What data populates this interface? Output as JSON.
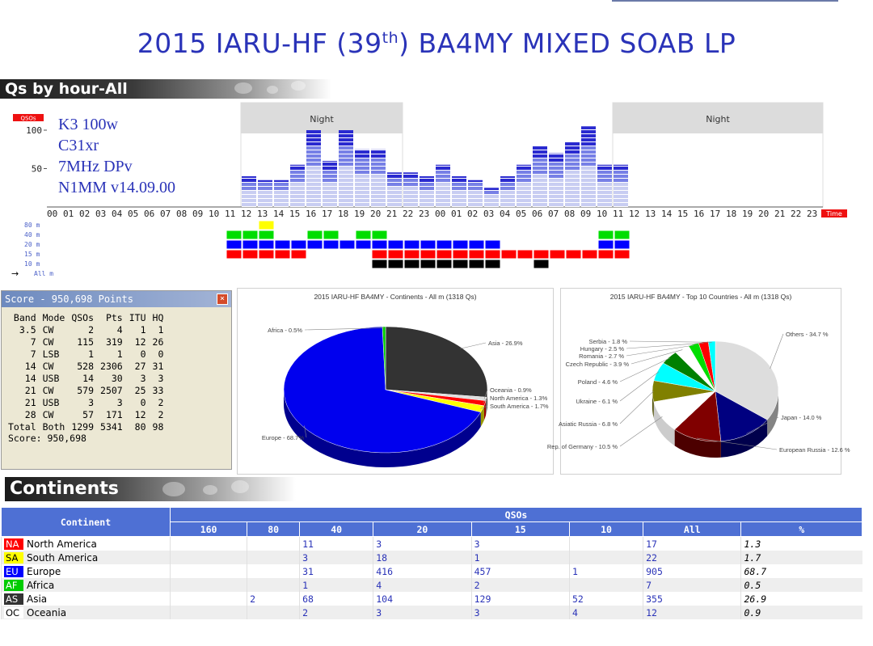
{
  "page": {
    "title_pre": "2015 IARU-HF (39",
    "title_sup": "th",
    "title_post": ") BA4MY MIXED SOAB LP"
  },
  "qs_by_hour": {
    "banner": "Qs by hour-All",
    "ylabel": "QSOs",
    "time_label": "Time",
    "night_label": "Night",
    "station_lines": [
      "K3  100w",
      "C31xr",
      "7MHz DPv",
      "N1MM v14.09.00"
    ],
    "band_rows": [
      "80 m",
      "40 m",
      "20 m",
      "15 m",
      "10 m",
      "All m"
    ],
    "band_arrow": "→"
  },
  "chart_data": [
    {
      "type": "bar",
      "title": "",
      "ylabel": "QSOs",
      "xlabel": "Time",
      "ylim": [
        0,
        120
      ],
      "yticks": [
        50,
        100
      ],
      "categories": [
        "00",
        "01",
        "02",
        "03",
        "04",
        "05",
        "06",
        "07",
        "08",
        "09",
        "10",
        "11",
        "12",
        "13",
        "14",
        "15",
        "16",
        "17",
        "18",
        "19",
        "20",
        "21",
        "22",
        "23",
        "00",
        "01",
        "02",
        "03",
        "04",
        "05",
        "06",
        "07",
        "08",
        "09",
        "10",
        "11",
        "12",
        "13",
        "14",
        "15",
        "16",
        "17",
        "18",
        "19",
        "20",
        "21",
        "22",
        "23"
      ],
      "values": [
        0,
        0,
        0,
        0,
        0,
        0,
        0,
        0,
        0,
        0,
        0,
        0,
        40,
        35,
        35,
        55,
        100,
        60,
        100,
        75,
        75,
        45,
        45,
        40,
        55,
        40,
        35,
        25,
        40,
        55,
        80,
        70,
        85,
        105,
        55,
        55,
        0,
        0,
        0,
        0,
        0,
        0,
        0,
        0,
        0,
        0,
        0,
        0
      ],
      "night_ranges": [
        [
          12,
          22
        ],
        [
          35,
          48
        ]
      ],
      "band_activity": {
        "80 m": [
          14
        ],
        "40 m": [
          12,
          13,
          14,
          17,
          18,
          20,
          21,
          35,
          36
        ],
        "20 m": [
          12,
          13,
          14,
          15,
          16,
          17,
          18,
          19,
          20,
          21,
          22,
          23,
          24,
          25,
          26,
          27,
          28,
          35,
          36
        ],
        "15 m": [
          12,
          13,
          14,
          15,
          16,
          21,
          22,
          23,
          24,
          25,
          26,
          27,
          28,
          29,
          30,
          31,
          32,
          33,
          34,
          35,
          36
        ],
        "10 m": [
          21,
          22,
          23,
          24,
          25,
          26,
          27,
          28,
          31
        ]
      },
      "band_colors": {
        "80 m": "#ffff00",
        "40 m": "#00dd00",
        "20 m": "#0000ff",
        "15 m": "#ff0000",
        "10 m": "#000000"
      }
    },
    {
      "type": "pie",
      "title": "2015 IARU-HF BA4MY - Continents - All m (1318 Qs)",
      "slices": [
        {
          "label": "Asia - 26.9%",
          "value": 26.9,
          "color": "#333333"
        },
        {
          "label": "Oceania - 0.9%",
          "value": 0.9,
          "color": "#dddddd"
        },
        {
          "label": "North America - 1.3%",
          "value": 1.3,
          "color": "#ff0000"
        },
        {
          "label": "South America - 1.7%",
          "value": 1.7,
          "color": "#ffff00"
        },
        {
          "label": "Europe - 68.7%",
          "value": 68.7,
          "color": "#0000ee"
        },
        {
          "label": "Africa - 0.5%",
          "value": 0.5,
          "color": "#00cc00"
        }
      ]
    },
    {
      "type": "pie",
      "title": "2015 IARU-HF BA4MY - Top 10 Countries - All m (1318 Qs)",
      "slices": [
        {
          "label": "Others - 34.7 %",
          "value": 34.7,
          "color": "#dddddd"
        },
        {
          "label": "Japan - 14.0 %",
          "value": 14.0,
          "color": "#000080"
        },
        {
          "label": "European Russia - 12.6 %",
          "value": 12.6,
          "color": "#800000"
        },
        {
          "label": "Rep. of Germany - 10.5 %",
          "value": 10.5,
          "color": "#ffffff"
        },
        {
          "label": "Asiatic Russia - 6.8 %",
          "value": 6.8,
          "color": "#808000"
        },
        {
          "label": "Ukraine - 6.1 %",
          "value": 6.1,
          "color": "#00ffff"
        },
        {
          "label": "Poland - 4.6 %",
          "value": 4.6,
          "color": "#008000"
        },
        {
          "label": "Czech Republic - 3.9 %",
          "value": 3.9,
          "color": "#ffffff"
        },
        {
          "label": "Romania - 2.7 %",
          "value": 2.7,
          "color": "#00dd00"
        },
        {
          "label": "Hungary - 2.5 %",
          "value": 2.5,
          "color": "#ff0000"
        },
        {
          "label": "Serbia - 1.8 %",
          "value": 1.8,
          "color": "#00ffff"
        }
      ]
    }
  ],
  "score": {
    "title": "Score - 950,698 Points",
    "close": "×",
    "headers": [
      "Band",
      "Mode",
      "QSOs",
      "Pts",
      "ITU",
      "HQ"
    ],
    "rows": [
      [
        "3.5",
        "CW",
        "2",
        "4",
        "1",
        "1"
      ],
      [
        "7",
        "CW",
        "115",
        "319",
        "12",
        "26"
      ],
      [
        "7",
        "LSB",
        "1",
        "1",
        "0",
        "0"
      ],
      [
        "14",
        "CW",
        "528",
        "2306",
        "27",
        "31"
      ],
      [
        "14",
        "USB",
        "14",
        "30",
        "3",
        "3"
      ],
      [
        "21",
        "CW",
        "579",
        "2507",
        "25",
        "33"
      ],
      [
        "21",
        "USB",
        "3",
        "3",
        "0",
        "2"
      ],
      [
        "28",
        "CW",
        "57",
        "171",
        "12",
        "2"
      ],
      [
        "Total",
        "Both",
        "1299",
        "5341",
        "80",
        "98"
      ]
    ],
    "score_line": "Score: 950,698"
  },
  "continents": {
    "banner": "Continents",
    "col_continent": "Continent",
    "col_qsos": "QSOs",
    "bands": [
      "160",
      "80",
      "40",
      "20",
      "15",
      "10",
      "All",
      "%"
    ],
    "rows": [
      {
        "code": "NA",
        "name": "North America",
        "code_bg": "#ff0000",
        "code_fg": "#ffffff",
        "vals": [
          "",
          "",
          "11",
          "3",
          "3",
          "",
          "17",
          "1.3"
        ]
      },
      {
        "code": "SA",
        "name": "South America",
        "code_bg": "#ffff00",
        "code_fg": "#000000",
        "vals": [
          "",
          "",
          "3",
          "18",
          "1",
          "",
          "22",
          "1.7"
        ]
      },
      {
        "code": "EU",
        "name": "Europe",
        "code_bg": "#0000ff",
        "code_fg": "#ffffff",
        "vals": [
          "",
          "",
          "31",
          "416",
          "457",
          "1",
          "905",
          "68.7"
        ]
      },
      {
        "code": "AF",
        "name": "Africa",
        "code_bg": "#00cc00",
        "code_fg": "#ffffff",
        "vals": [
          "",
          "",
          "1",
          "4",
          "2",
          "",
          "7",
          "0.5"
        ]
      },
      {
        "code": "AS",
        "name": "Asia",
        "code_bg": "#333333",
        "code_fg": "#ffffff",
        "vals": [
          "",
          "2",
          "68",
          "104",
          "129",
          "52",
          "355",
          "26.9"
        ]
      },
      {
        "code": "OC",
        "name": "Oceania",
        "code_bg": "#ffffff",
        "code_fg": "#000000",
        "vals": [
          "",
          "",
          "2",
          "3",
          "3",
          "4",
          "12",
          "0.9"
        ]
      }
    ]
  }
}
